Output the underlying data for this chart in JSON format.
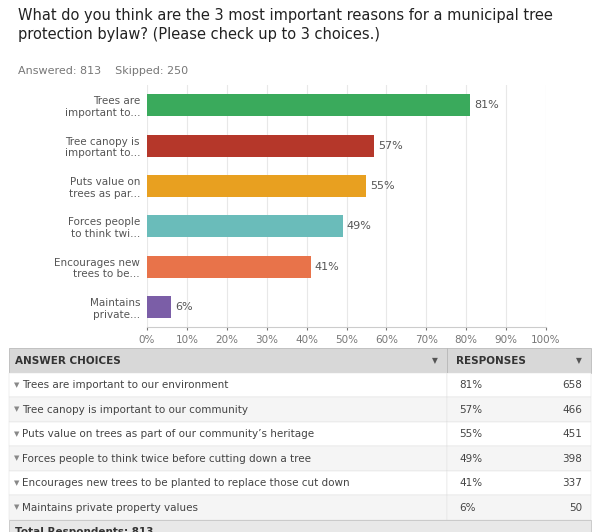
{
  "title": "What do you think are the 3 most important reasons for a municipal tree\nprotection bylaw? (Please check up to 3 choices.)",
  "subtitle": "Answered: 813    Skipped: 250",
  "categories": [
    "Trees are\nimportant to...",
    "Tree canopy is\nimportant to...",
    "Puts value on\ntrees as par...",
    "Forces people\nto think twi...",
    "Encourages new\ntrees to be...",
    "Maintains\nprivate..."
  ],
  "values": [
    81,
    57,
    55,
    49,
    41,
    6
  ],
  "bar_colors": [
    "#3aaa5c",
    "#b5372a",
    "#e8a020",
    "#6abcba",
    "#e8734a",
    "#7b5ea7"
  ],
  "value_labels": [
    "81%",
    "57%",
    "55%",
    "49%",
    "41%",
    "6%"
  ],
  "xlim": [
    0,
    100
  ],
  "xticks": [
    0,
    10,
    20,
    30,
    40,
    50,
    60,
    70,
    80,
    90,
    100
  ],
  "xtick_labels": [
    "0%",
    "10%",
    "20%",
    "30%",
    "40%",
    "50%",
    "60%",
    "70%",
    "80%",
    "90%",
    "100%"
  ],
  "table_headers": [
    "ANSWER CHOICES",
    "RESPONSES"
  ],
  "table_rows": [
    [
      "Trees are important to our environment",
      "81%",
      "658"
    ],
    [
      "Tree canopy is important to our community",
      "57%",
      "466"
    ],
    [
      "Puts value on trees as part of our community’s heritage",
      "55%",
      "451"
    ],
    [
      "Forces people to think twice before cutting down a tree",
      "49%",
      "398"
    ],
    [
      "Encourages new trees to be planted to replace those cut down",
      "41%",
      "337"
    ],
    [
      "Maintains private property values",
      "6%",
      "50"
    ]
  ],
  "total_row": "Total Respondents: 813",
  "bg_color": "#ffffff",
  "grid_color": "#e8e8e8",
  "text_color": "#555555",
  "table_header_bg": "#d8d8d8",
  "title_fontsize": 10.5,
  "subtitle_fontsize": 8,
  "bar_label_fontsize": 8,
  "tick_fontsize": 7.5,
  "ytick_fontsize": 7.5,
  "table_fontsize": 7.5
}
